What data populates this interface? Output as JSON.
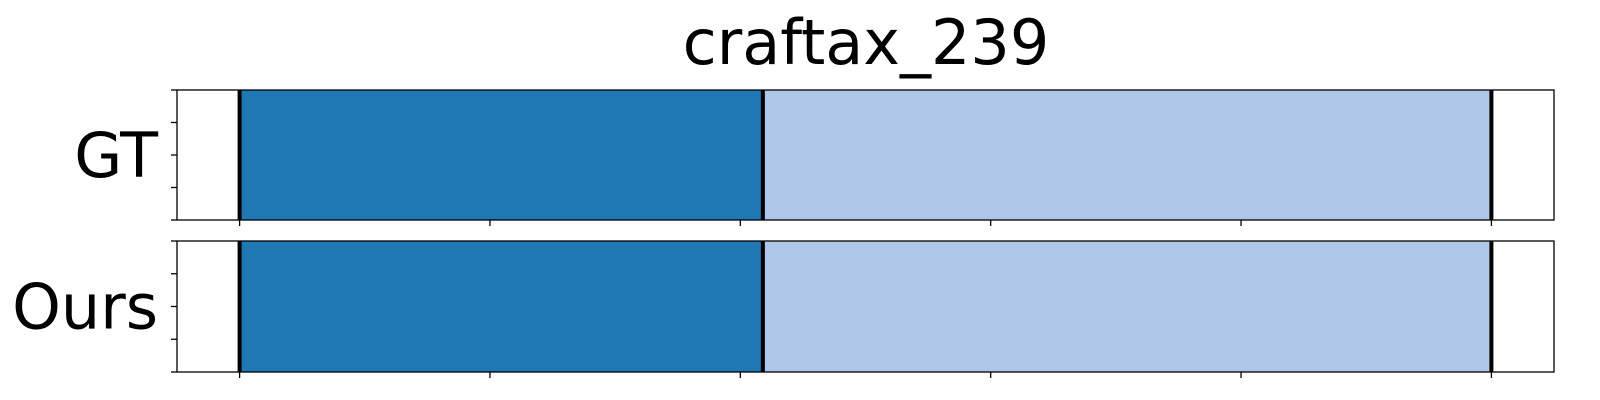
{
  "chart_data": {
    "type": "bar",
    "title": "craftax_239",
    "xlim": [
      0,
      550
    ],
    "rows": [
      {
        "label": "GT",
        "segments": [
          {
            "start": 25,
            "end": 234,
            "color": "#1f77b4"
          },
          {
            "start": 234,
            "end": 525,
            "color": "#aec7e8"
          }
        ],
        "boundaries": [
          25,
          234,
          525
        ]
      },
      {
        "label": "Ours",
        "segments": [
          {
            "start": 25,
            "end": 234,
            "color": "#1f77b4"
          },
          {
            "start": 234,
            "end": 525,
            "color": "#aec7e8"
          }
        ],
        "boundaries": [
          25,
          234,
          525
        ]
      }
    ],
    "xticks": [
      25,
      125,
      225,
      325,
      425,
      525
    ],
    "xtick_labels_shown": false,
    "ytick_labels_shown": false
  }
}
